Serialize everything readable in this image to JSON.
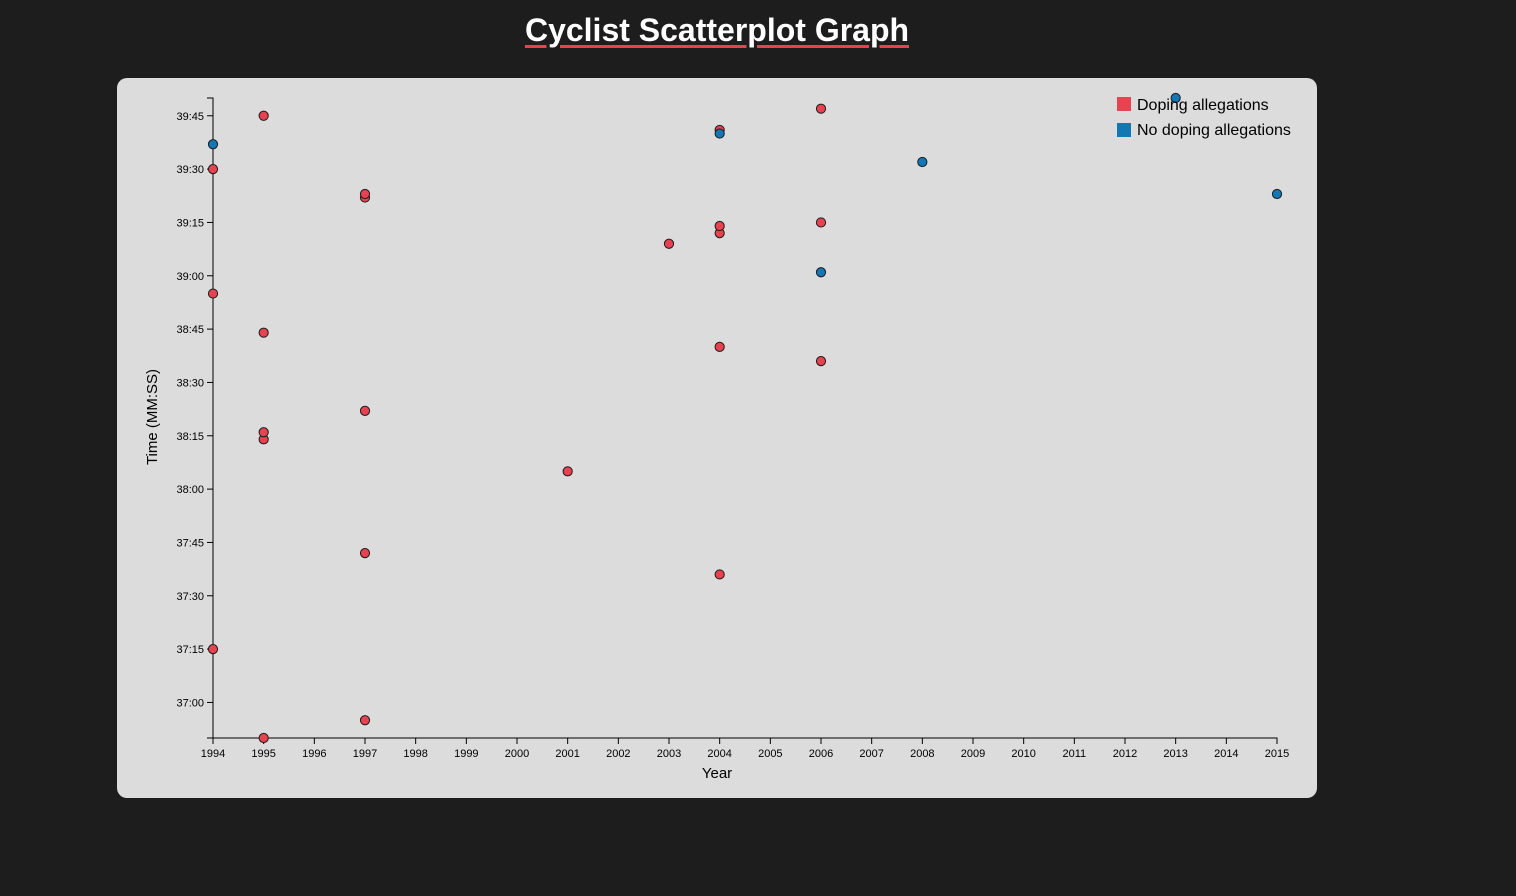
{
  "page": {
    "title": "Cyclist Scatterplot Graph"
  },
  "colors": {
    "background": "#1d1d1d",
    "card": "#dcdcdc",
    "doping": "#e8414f",
    "no_doping": "#1177b5",
    "title_underline": "#e8414f"
  },
  "chart_data": {
    "type": "scatter",
    "title": "Cyclist Scatterplot Graph",
    "xlabel": "Year",
    "ylabel": "Time (MM:SS)",
    "xlim": [
      1994,
      2015
    ],
    "ylim_seconds": [
      2210,
      2390
    ],
    "x_ticks": [
      "1994",
      "1995",
      "1996",
      "1997",
      "1998",
      "1999",
      "2000",
      "2001",
      "2002",
      "2003",
      "2004",
      "2005",
      "2006",
      "2007",
      "2008",
      "2009",
      "2010",
      "2011",
      "2012",
      "2013",
      "2014",
      "2015"
    ],
    "y_ticks": [
      {
        "label": "37:00",
        "seconds": 2220
      },
      {
        "label": "37:15",
        "seconds": 2235
      },
      {
        "label": "37:30",
        "seconds": 2250
      },
      {
        "label": "37:45",
        "seconds": 2265
      },
      {
        "label": "38:00",
        "seconds": 2280
      },
      {
        "label": "38:15",
        "seconds": 2295
      },
      {
        "label": "38:30",
        "seconds": 2310
      },
      {
        "label": "38:45",
        "seconds": 2325
      },
      {
        "label": "39:00",
        "seconds": 2340
      },
      {
        "label": "39:15",
        "seconds": 2355
      },
      {
        "label": "39:30",
        "seconds": 2370
      },
      {
        "label": "39:45",
        "seconds": 2385
      }
    ],
    "legend": [
      {
        "key": "doping",
        "label": "Doping allegations"
      },
      {
        "key": "no_doping",
        "label": "No doping allegations"
      }
    ],
    "legend_position": "top-right",
    "series": [
      {
        "name": "Doping allegations",
        "key": "doping",
        "points": [
          {
            "year": 1995,
            "seconds": 2210
          },
          {
            "year": 1997,
            "seconds": 2215
          },
          {
            "year": 1994,
            "seconds": 2235
          },
          {
            "year": 2004,
            "seconds": 2256
          },
          {
            "year": 1997,
            "seconds": 2262
          },
          {
            "year": 2001,
            "seconds": 2285
          },
          {
            "year": 1995,
            "seconds": 2294
          },
          {
            "year": 1995,
            "seconds": 2296
          },
          {
            "year": 1997,
            "seconds": 2302
          },
          {
            "year": 2006,
            "seconds": 2316
          },
          {
            "year": 2004,
            "seconds": 2320
          },
          {
            "year": 1995,
            "seconds": 2324
          },
          {
            "year": 1994,
            "seconds": 2335
          },
          {
            "year": 2003,
            "seconds": 2349
          },
          {
            "year": 2004,
            "seconds": 2352
          },
          {
            "year": 2004,
            "seconds": 2354
          },
          {
            "year": 2006,
            "seconds": 2355
          },
          {
            "year": 1997,
            "seconds": 2362
          },
          {
            "year": 1997,
            "seconds": 2363
          },
          {
            "year": 1994,
            "seconds": 2370
          },
          {
            "year": 2004,
            "seconds": 2381
          },
          {
            "year": 1995,
            "seconds": 2385
          },
          {
            "year": 2006,
            "seconds": 2387
          }
        ]
      },
      {
        "name": "No doping allegations",
        "key": "no_doping",
        "points": [
          {
            "year": 2006,
            "seconds": 2341
          },
          {
            "year": 2015,
            "seconds": 2363
          },
          {
            "year": 2008,
            "seconds": 2372
          },
          {
            "year": 1994,
            "seconds": 2377
          },
          {
            "year": 2004,
            "seconds": 2380
          },
          {
            "year": 2013,
            "seconds": 2390
          }
        ]
      }
    ]
  }
}
